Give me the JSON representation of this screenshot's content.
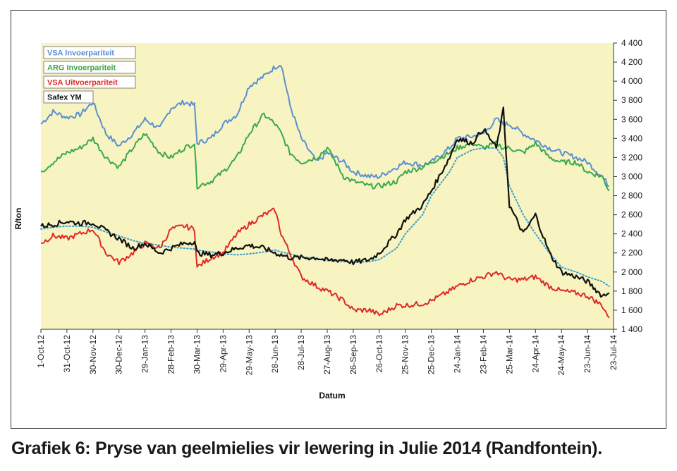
{
  "caption": "Grafiek 6: Pryse van geelmielies vir lewering in Julie 2014 (Randfontein).",
  "chart_data": {
    "type": "line",
    "xlabel": "Datum",
    "ylabel": "R/ton",
    "ylim": [
      1400,
      4400
    ],
    "yticks": [
      1400,
      1600,
      1800,
      2000,
      2200,
      2400,
      2600,
      2800,
      3000,
      3200,
      3400,
      3600,
      3800,
      4000,
      4200,
      4400
    ],
    "ytick_labels": [
      "1 400",
      "1 600",
      "1 800",
      "2 000",
      "2 200",
      "2 400",
      "2 600",
      "2 800",
      "3 000",
      "3 200",
      "3 400",
      "3 600",
      "3 800",
      "4 000",
      "4 200",
      "4 400"
    ],
    "y_axis_side": "right",
    "xticks": [
      "1-Oct-12",
      "31-Oct-12",
      "30-Nov-12",
      "30-Dec-12",
      "29-Jan-13",
      "28-Feb-13",
      "30-Mar-13",
      "29-Apr-13",
      "29-May-13",
      "28-Jun-13",
      "28-Jul-13",
      "27-Aug-13",
      "26-Sep-13",
      "26-Oct-13",
      "25-Nov-13",
      "25-Dec-13",
      "24-Jan-14",
      "23-Feb-14",
      "25-Mar-14",
      "24-Apr-14",
      "24-May-14",
      "23-Jun-14",
      "23-Jul-14"
    ],
    "grid": false,
    "legend_position": "top-left",
    "plot_background": "#f7f4c2",
    "x": [
      "1-Oct-12",
      "15-Oct-12",
      "31-Oct-12",
      "15-Nov-12",
      "30-Nov-12",
      "15-Dec-12",
      "30-Dec-12",
      "15-Jan-13",
      "29-Jan-13",
      "15-Feb-13",
      "28-Feb-13",
      "15-Mar-13",
      "27-Mar-13",
      "30-Mar-13",
      "15-Apr-13",
      "29-Apr-13",
      "15-May-13",
      "29-May-13",
      "15-Jun-13",
      "28-Jun-13",
      "5-Jul-13",
      "15-Jul-13",
      "28-Jul-13",
      "15-Aug-13",
      "27-Aug-13",
      "15-Sep-13",
      "26-Sep-13",
      "15-Oct-13",
      "26-Oct-13",
      "15-Nov-13",
      "25-Nov-13",
      "15-Dec-13",
      "25-Dec-13",
      "15-Jan-14",
      "24-Jan-14",
      "10-Feb-14",
      "23-Feb-14",
      "10-Mar-14",
      "18-Mar-14",
      "25-Mar-14",
      "10-Apr-14",
      "24-Apr-14",
      "10-May-14",
      "24-May-14",
      "10-Jun-14",
      "23-Jun-14",
      "10-Jul-14",
      "18-Jul-14"
    ],
    "series": [
      {
        "name": "VSA Invoerpariteit",
        "color": "#5b8fd0",
        "values": [
          3550,
          3680,
          3620,
          3650,
          3780,
          3450,
          3320,
          3450,
          3600,
          3500,
          3720,
          3780,
          3750,
          3350,
          3400,
          3550,
          3650,
          3950,
          4050,
          4150,
          4180,
          3750,
          3400,
          3150,
          3250,
          3150,
          3050,
          3000,
          3000,
          3100,
          3150,
          3120,
          3150,
          3300,
          3400,
          3420,
          3450,
          3600,
          3550,
          3550,
          3450,
          3380,
          3300,
          3250,
          3200,
          3150,
          3000,
          2900
        ]
      },
      {
        "name": "ARG Invoerpariteit",
        "color": "#3aa84a",
        "values": [
          3050,
          3150,
          3250,
          3300,
          3400,
          3200,
          3100,
          3300,
          3450,
          3250,
          3200,
          3300,
          3350,
          2900,
          2950,
          3050,
          3200,
          3450,
          3650,
          3550,
          3450,
          3250,
          3150,
          3200,
          3300,
          3000,
          2950,
          2900,
          2900,
          2950,
          3050,
          3100,
          3150,
          3250,
          3300,
          3350,
          3300,
          3350,
          3300,
          3300,
          3250,
          3350,
          3200,
          3150,
          3150,
          3050,
          3000,
          2850
        ]
      },
      {
        "name": "VSA Uitvoerpariteit",
        "color": "#e02826",
        "values": [
          2300,
          2380,
          2350,
          2400,
          2450,
          2200,
          2100,
          2200,
          2300,
          2250,
          2450,
          2480,
          2450,
          2050,
          2150,
          2200,
          2400,
          2500,
          2600,
          2650,
          2400,
          2200,
          1950,
          1850,
          1800,
          1700,
          1600,
          1600,
          1550,
          1650,
          1650,
          1670,
          1700,
          1800,
          1850,
          1920,
          1950,
          2000,
          1950,
          1920,
          1920,
          1950,
          1850,
          1800,
          1780,
          1750,
          1650,
          1520
        ]
      },
      {
        "name": "Safex YM",
        "color": "#111111",
        "values": [
          2480,
          2500,
          2530,
          2510,
          2520,
          2430,
          2350,
          2250,
          2300,
          2200,
          2250,
          2300,
          2320,
          2200,
          2180,
          2200,
          2250,
          2280,
          2250,
          2200,
          2180,
          2150,
          2150,
          2150,
          2120,
          2130,
          2100,
          2130,
          2200,
          2400,
          2550,
          2700,
          2850,
          3200,
          3400,
          3350,
          3500,
          3300,
          3700,
          2700,
          2400,
          2600,
          2200,
          2000,
          1950,
          1900,
          1750,
          1780
        ]
      }
    ],
    "trend_line": {
      "style": "dotted",
      "color": "#3aa0c8",
      "values": [
        2450,
        2470,
        2480,
        2480,
        2470,
        2420,
        2380,
        2330,
        2300,
        2280,
        2260,
        2250,
        2240,
        2230,
        2210,
        2190,
        2180,
        2190,
        2210,
        2230,
        2210,
        2190,
        2160,
        2140,
        2120,
        2110,
        2100,
        2110,
        2130,
        2250,
        2400,
        2600,
        2800,
        3050,
        3200,
        3280,
        3300,
        3300,
        3200,
        2900,
        2600,
        2400,
        2200,
        2050,
        2000,
        1950,
        1900,
        1850
      ]
    }
  }
}
